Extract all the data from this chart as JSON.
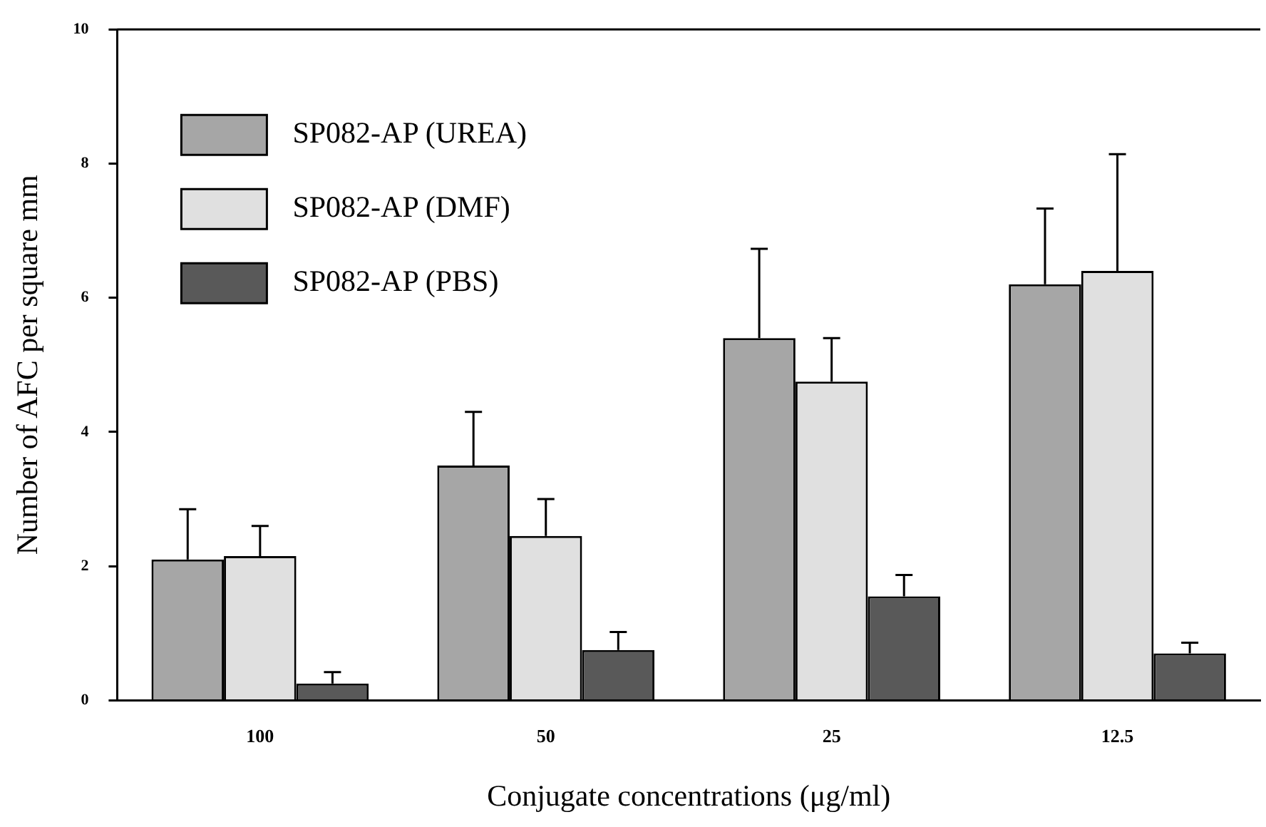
{
  "chart_data": {
    "type": "bar",
    "xlabel": "Conjugate concentrations (μg/ml)",
    "ylabel": "Number of AFC per square mm",
    "categories": [
      "100",
      "50",
      "25",
      "12.5"
    ],
    "series": [
      {
        "name": "SP082-AP (UREA)",
        "color": "#a6a6a6",
        "values": [
          2.1,
          3.5,
          5.4,
          6.2
        ],
        "errors": [
          0.75,
          0.8,
          1.33,
          1.13
        ]
      },
      {
        "name": "SP082-AP (DMF)",
        "color": "#e0e0e0",
        "values": [
          2.15,
          2.45,
          4.75,
          6.4
        ],
        "errors": [
          0.45,
          0.55,
          0.65,
          1.74
        ]
      },
      {
        "name": "SP082-AP (PBS)",
        "color": "#595959",
        "values": [
          0.25,
          0.75,
          1.55,
          0.7
        ],
        "errors": [
          0.17,
          0.27,
          0.32,
          0.16
        ]
      }
    ],
    "ylim": [
      0,
      10
    ],
    "yticks": [
      0,
      2,
      4,
      6,
      8,
      10
    ],
    "grid": false,
    "legend": "top left"
  }
}
